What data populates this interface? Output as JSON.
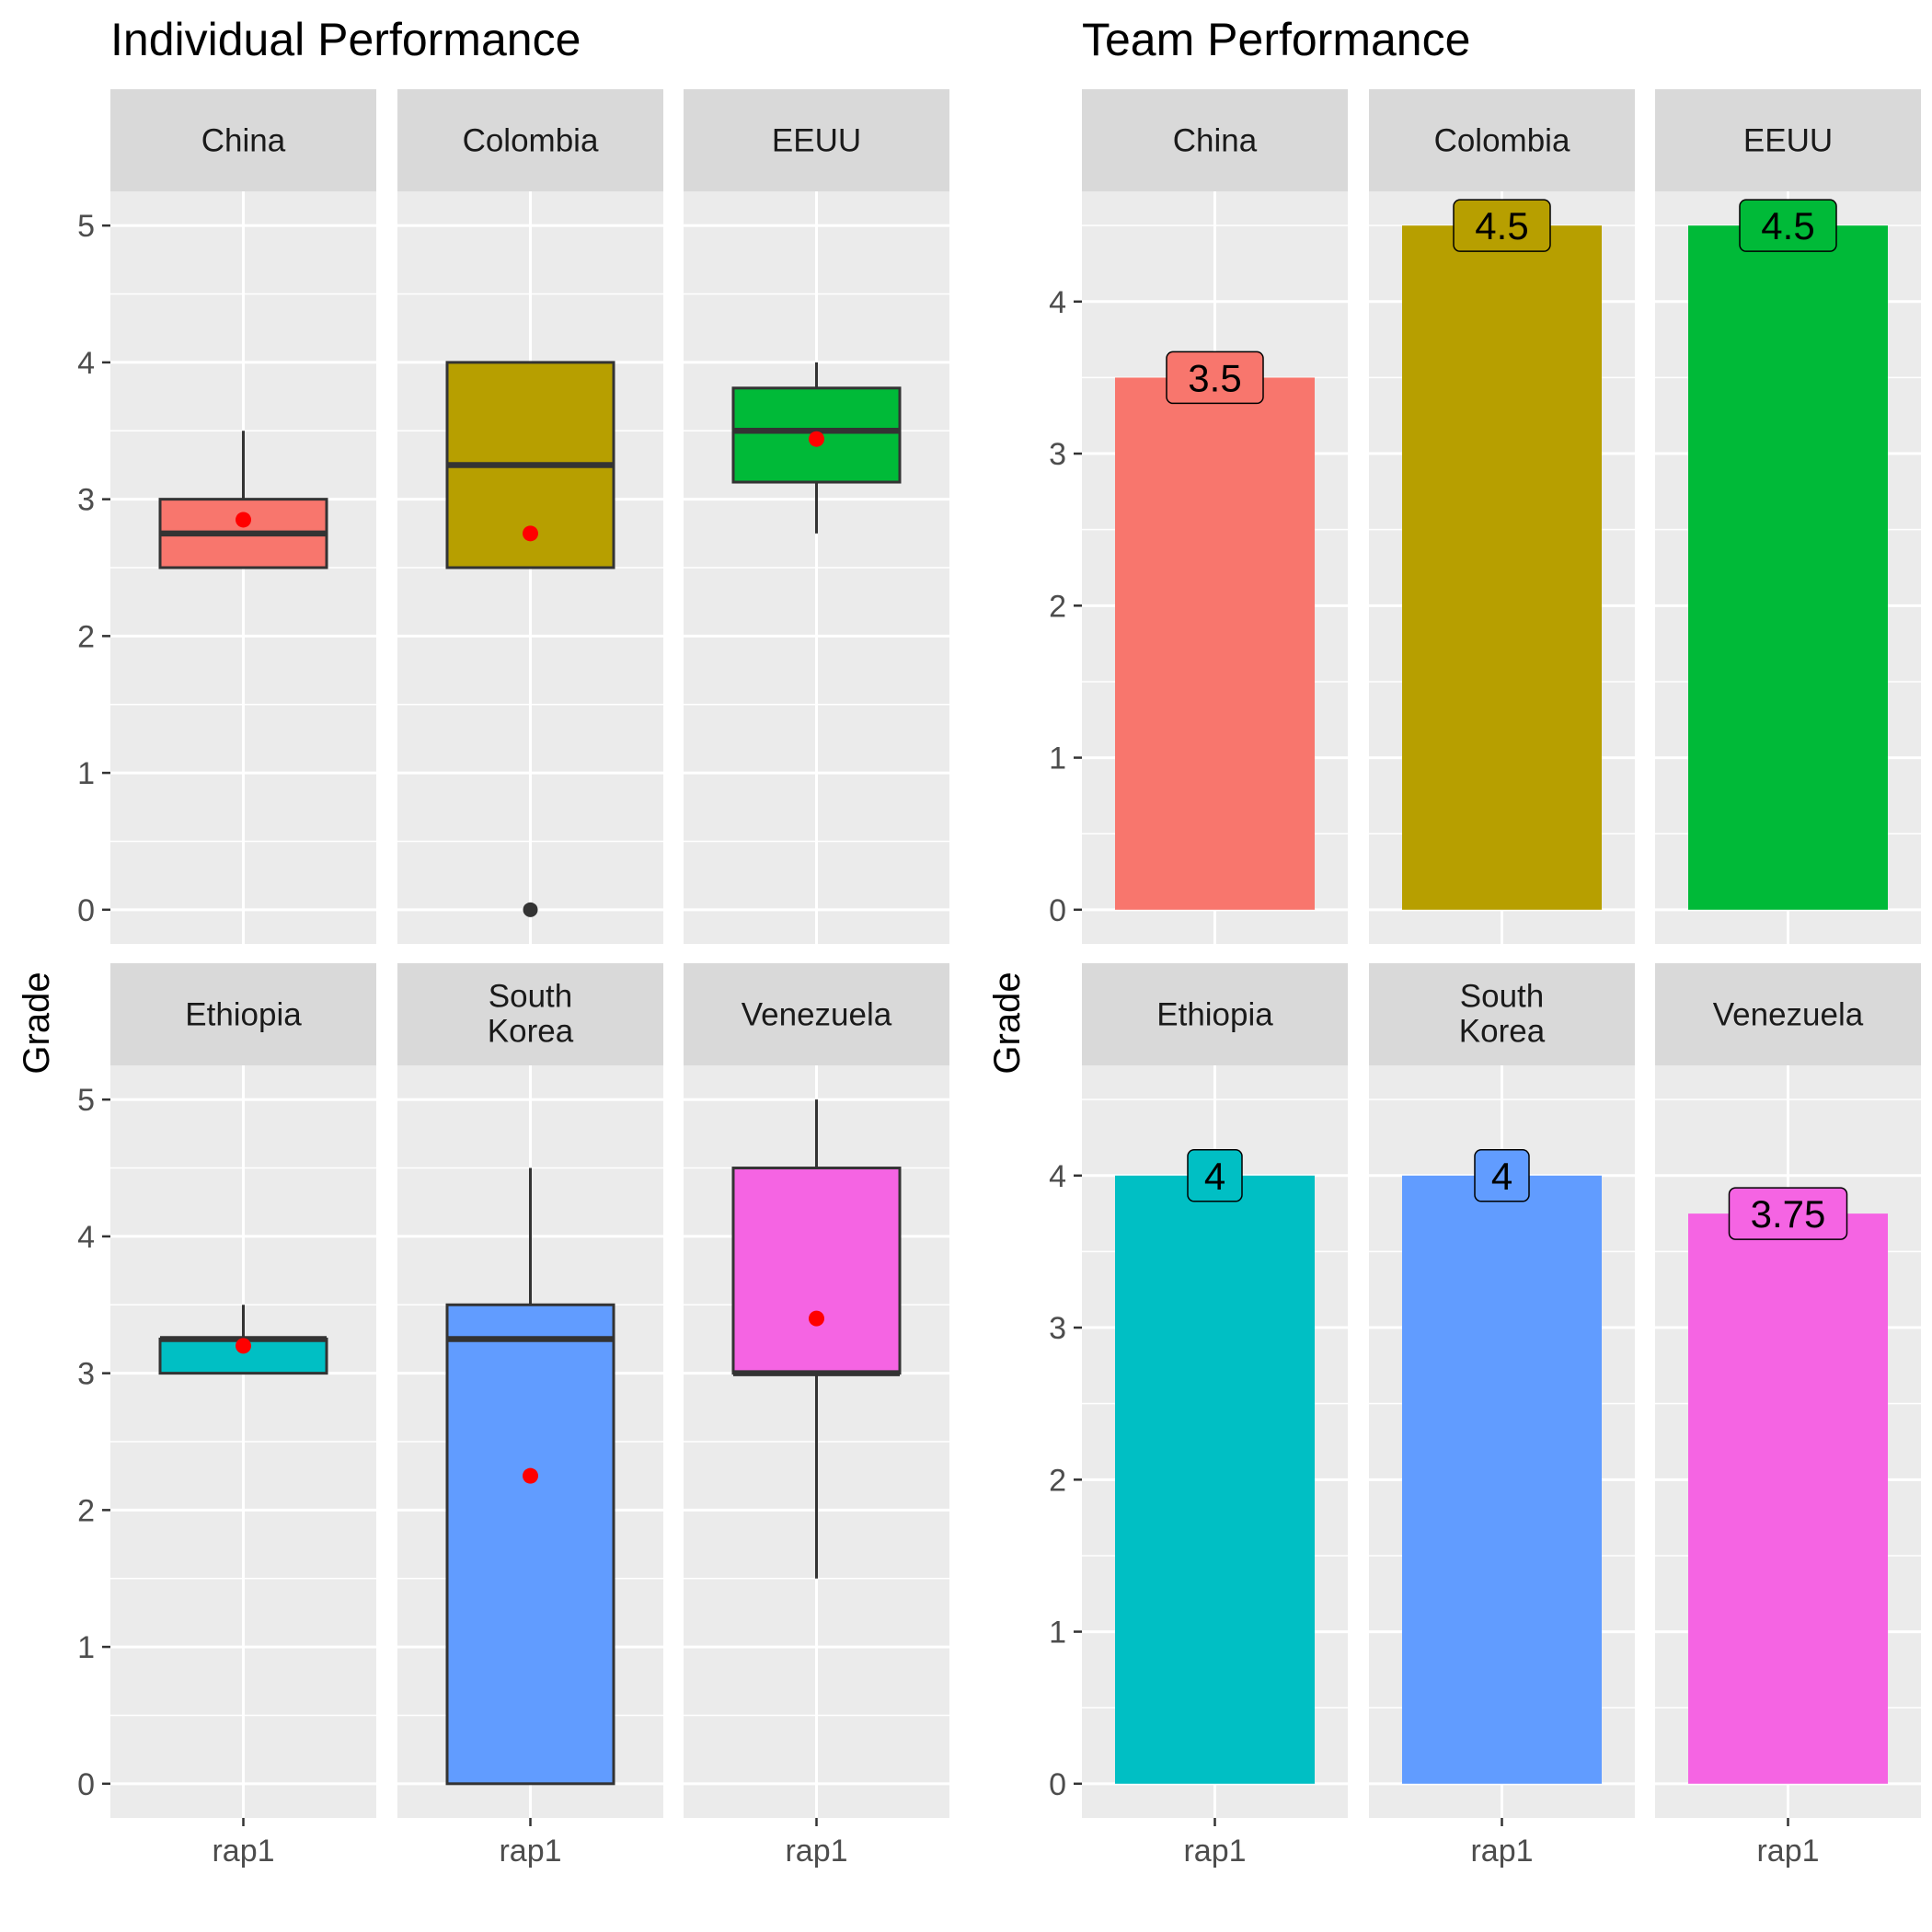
{
  "chart_data": [
    {
      "type": "box",
      "title": "Individual Performance",
      "ylabel": "Grade",
      "xlabel": "",
      "x_tick_label": "rap1",
      "ylim": [
        -0.25,
        5.25
      ],
      "y_ticks": [
        0,
        1,
        2,
        3,
        4,
        5
      ],
      "grid": true,
      "legend": "none",
      "panels": [
        {
          "name": "China",
          "color": "#F8766D",
          "q1": 2.5,
          "median": 2.75,
          "q3": 3.0,
          "whisker_low": 2.5,
          "whisker_high": 3.5,
          "mean": 2.85,
          "outliers": []
        },
        {
          "name": "Colombia",
          "color": "#B79F00",
          "q1": 2.5,
          "median": 3.25,
          "q3": 4.0,
          "whisker_low": 2.5,
          "whisker_high": 4.0,
          "mean": 2.75,
          "outliers": [
            0
          ]
        },
        {
          "name": "EEUU",
          "color": "#00BA38",
          "q1": 3.125,
          "median": 3.5,
          "q3": 3.8125,
          "whisker_low": 2.75,
          "whisker_high": 4.0,
          "mean": 3.44,
          "outliers": []
        },
        {
          "name": "Ethiopia",
          "color": "#00BFC4",
          "q1": 3.0,
          "median": 3.25,
          "q3": 3.25,
          "whisker_low": 3.0,
          "whisker_high": 3.5,
          "mean": 3.2,
          "outliers": []
        },
        {
          "name": "South Korea",
          "color": "#619CFF",
          "q1": 0.0,
          "median": 3.25,
          "q3": 3.5,
          "whisker_low": 0.0,
          "whisker_high": 4.5,
          "mean": 2.25,
          "outliers": []
        },
        {
          "name": "Venezuela",
          "color": "#F564E3",
          "q1": 3.0,
          "median": 3.0,
          "q3": 4.5,
          "whisker_low": 1.5,
          "whisker_high": 5.0,
          "mean": 3.4,
          "outliers": []
        }
      ]
    },
    {
      "type": "bar",
      "title": "Team Performance",
      "ylabel": "Grade",
      "xlabel": "",
      "x_tick_label": "rap1",
      "ylim": [
        -0.225,
        4.725
      ],
      "y_ticks": [
        0,
        1,
        2,
        3,
        4
      ],
      "grid": true,
      "legend": "none",
      "panels": [
        {
          "name": "China",
          "color": "#F8766D",
          "value": 3.5,
          "label": "3.5"
        },
        {
          "name": "Colombia",
          "color": "#B79F00",
          "value": 4.5,
          "label": "4.5"
        },
        {
          "name": "EEUU",
          "color": "#00BA38",
          "value": 4.5,
          "label": "4.5"
        },
        {
          "name": "Ethiopia",
          "color": "#00BFC4",
          "value": 4.0,
          "label": "4"
        },
        {
          "name": "South Korea",
          "color": "#619CFF",
          "value": 4.0,
          "label": "4"
        },
        {
          "name": "Venezuela",
          "color": "#F564E3",
          "value": 3.75,
          "label": "3.75"
        }
      ]
    }
  ],
  "colors": {
    "panel_background": "#EBEBEB",
    "strip_background": "#D9D9D9",
    "grid_line": "#FFFFFF",
    "box_outline": "#333333",
    "mean_point": "#FF0000",
    "axis_text": "#4D4D4D"
  }
}
